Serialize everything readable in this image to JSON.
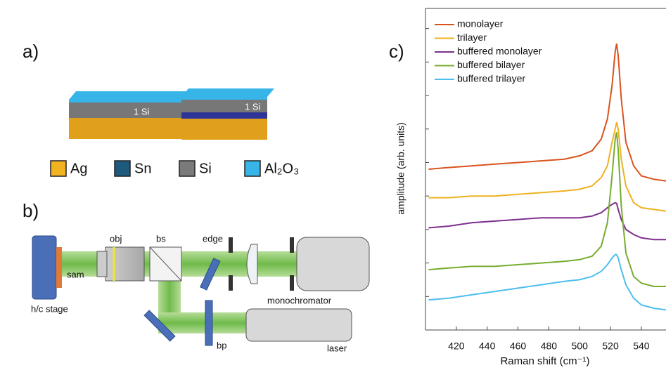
{
  "panels": {
    "a": "a)",
    "b": "b)",
    "c": "c)"
  },
  "stack_labels": [
    "1 Si",
    "1 Si"
  ],
  "materials": [
    {
      "label": "Ag",
      "color": "#f2b321"
    },
    {
      "label": "Sn",
      "color": "#1e5a7d"
    },
    {
      "label": "Si",
      "color": "#7a7a7a"
    },
    {
      "label": "Al₂O₃",
      "color": "#37b4e8"
    }
  ],
  "setup": {
    "sam": "sam",
    "stage": "h/c stage",
    "obj": "obj",
    "bs": "bs",
    "edge": "edge",
    "monochromator": "monochromator",
    "laser": "laser",
    "bp": "bp"
  },
  "chart_data": {
    "type": "line",
    "x_label": "Raman shift (cm⁻¹)",
    "y_label": "amplitude (arb. units)",
    "x": [
      402,
      415,
      430,
      445,
      460,
      475,
      490,
      500,
      508,
      514,
      518,
      521,
      523,
      524,
      525,
      527,
      530,
      535,
      540,
      548,
      556
    ],
    "xlim": [
      400,
      556
    ],
    "xticks": [
      420,
      440,
      460,
      480,
      500,
      520,
      540
    ],
    "ylim": [
      0,
      9.6
    ],
    "yticks": [
      1,
      2,
      3,
      4,
      5,
      6,
      7,
      8,
      9
    ],
    "legend": "upper left",
    "series": [
      {
        "name": "monolayer",
        "color": "#d9531e",
        "values": [
          4.8,
          4.85,
          4.9,
          4.95,
          5.0,
          5.05,
          5.1,
          5.2,
          5.35,
          5.7,
          6.3,
          7.3,
          8.3,
          8.55,
          8.2,
          6.9,
          5.6,
          4.9,
          4.6,
          4.5,
          4.45
        ]
      },
      {
        "name": "trilayer",
        "color": "#eeb220",
        "values": [
          3.95,
          3.95,
          4.0,
          4.0,
          4.05,
          4.1,
          4.15,
          4.2,
          4.3,
          4.55,
          4.9,
          5.6,
          6.0,
          6.2,
          6.0,
          5.1,
          4.3,
          3.8,
          3.65,
          3.6,
          3.55
        ]
      },
      {
        "name": "buffered monolayer",
        "color": "#7e2f8e",
        "values": [
          3.05,
          3.1,
          3.2,
          3.25,
          3.3,
          3.35,
          3.35,
          3.35,
          3.4,
          3.5,
          3.65,
          3.75,
          3.8,
          3.78,
          3.6,
          3.3,
          3.0,
          2.85,
          2.75,
          2.7,
          2.7
        ]
      },
      {
        "name": "buffered bilayer",
        "color": "#77ac30",
        "values": [
          1.8,
          1.85,
          1.9,
          1.9,
          1.95,
          2.0,
          2.05,
          2.1,
          2.2,
          2.5,
          3.2,
          4.6,
          5.7,
          5.9,
          5.4,
          3.7,
          2.3,
          1.6,
          1.4,
          1.3,
          1.3
        ]
      },
      {
        "name": "buffered trilayer",
        "color": "#4dbeee",
        "values": [
          0.9,
          0.95,
          1.05,
          1.15,
          1.25,
          1.35,
          1.45,
          1.5,
          1.6,
          1.75,
          1.95,
          2.15,
          2.25,
          2.25,
          2.15,
          1.8,
          1.35,
          0.95,
          0.75,
          0.65,
          0.6
        ]
      }
    ]
  }
}
